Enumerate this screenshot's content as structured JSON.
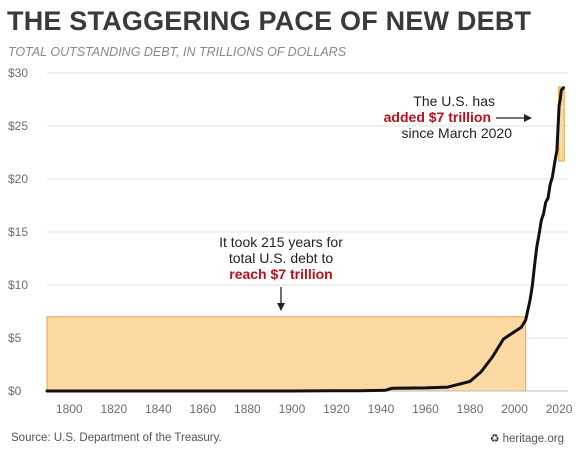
{
  "header": {
    "title": "THE STAGGERING PACE OF NEW DEBT",
    "subtitle": "TOTAL OUTSTANDING DEBT, IN TRILLIONS OF DOLLARS"
  },
  "footer": {
    "source": "Source: U.S. Department of the Treasury.",
    "brand_icon": "liberty-bell-icon",
    "brand": "heritage.org"
  },
  "colors": {
    "highlight_fill": "#fcd9a2",
    "highlight_stroke": "#e3a63c",
    "line": "#111111",
    "accent_text": "#b5121b",
    "grid": "#e2e2e2"
  },
  "chart_data": {
    "type": "line",
    "title": "THE STAGGERING PACE OF NEW DEBT",
    "subtitle": "TOTAL OUTSTANDING DEBT, IN TRILLIONS OF DOLLARS",
    "xlabel": "",
    "ylabel": "",
    "xlim": [
      1790,
      2024
    ],
    "ylim": [
      0,
      30
    ],
    "grid": true,
    "x_ticks": [
      1800,
      1820,
      1840,
      1860,
      1880,
      1900,
      1920,
      1940,
      1960,
      1980,
      2000,
      2020
    ],
    "y_ticks": [
      0,
      5,
      10,
      15,
      20,
      25,
      30
    ],
    "y_tick_labels": [
      "$0",
      "$5",
      "$10",
      "$15",
      "$20",
      "$25",
      "$30"
    ],
    "series": [
      {
        "name": "",
        "x": [
          1790,
          1860,
          1900,
          1918,
          1930,
          1942,
          1945,
          1960,
          1970,
          1980,
          1985,
          1990,
          1995,
          2000,
          2003,
          2005,
          2007,
          2008,
          2009,
          2010,
          2011,
          2012,
          2013,
          2014,
          2015,
          2016,
          2017,
          2018,
          2019,
          2020,
          2020.5,
          2021,
          2022
        ],
        "y": [
          0.0,
          0.0,
          0.0,
          0.02,
          0.02,
          0.07,
          0.26,
          0.29,
          0.37,
          0.91,
          1.82,
          3.2,
          4.9,
          5.6,
          6.0,
          6.7,
          8.6,
          10.0,
          11.9,
          13.6,
          14.8,
          16.1,
          16.7,
          17.8,
          18.2,
          19.5,
          20.2,
          21.5,
          22.7,
          26.9,
          27.5,
          28.4,
          28.6
        ]
      }
    ],
    "highlights": [
      {
        "x_range": [
          1790,
          2005
        ],
        "y_range": [
          0,
          7
        ]
      },
      {
        "x_range": [
          2019.8,
          2022.3
        ],
        "y_range": [
          21.7,
          28.7
        ]
      }
    ],
    "annotations": [
      {
        "lines": [
          "It took 215 years for",
          "total U.S. debt to"
        ],
        "emphasis": "reach $7 trillion",
        "arrow": "down"
      },
      {
        "lines": [
          "The U.S. has"
        ],
        "emphasis": "added $7 trillion",
        "after": "since March 2020",
        "arrow": "right"
      }
    ]
  }
}
